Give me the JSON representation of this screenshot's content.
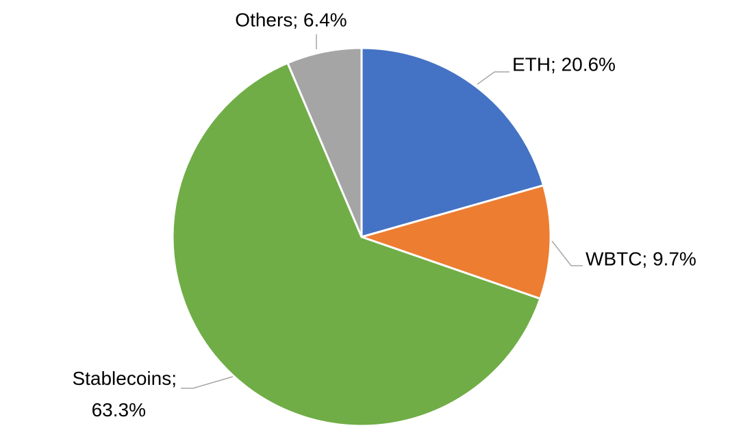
{
  "chart_data": {
    "type": "pie",
    "values": [
      20.6,
      9.7,
      63.3,
      6.4
    ],
    "value_labels": [
      "ETH; 20.6%",
      "WBTC; 9.7%",
      "Stablecoins; 63.3%",
      "Others; 6.4%"
    ],
    "colors": [
      "#4472c4",
      "#ed7d31",
      "#70ad47",
      "#a5a5a5"
    ]
  }
}
